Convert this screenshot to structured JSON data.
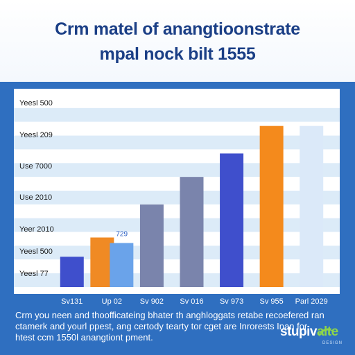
{
  "header": {
    "title_line1": "Crm matel of anangtioonstrate",
    "title_line2": "mpal nock bilt 1555"
  },
  "chart_data": {
    "type": "bar",
    "title": "Crm matel of anangtioonstrate mpal nock bilt 1555",
    "categories": [
      "Sv131",
      "Up 02",
      "Sv 902",
      "Sv 016",
      "Sv 973",
      "Sv 955",
      "Parl 2029"
    ],
    "y_tick_labels": [
      "Yeesl 77",
      "Yeesl 500",
      "Yeer 2010",
      "Use 2010",
      "Use 7000",
      "Yeesl 209",
      "Yeesl 500"
    ],
    "ylim": [
      0,
      7
    ],
    "bars": [
      {
        "category": "Sv131",
        "value": 1.1,
        "color": "#3f4fcc"
      },
      {
        "category": "Up 02",
        "value": 1.8,
        "color": "#f08a24"
      },
      {
        "category": "Up 02",
        "value": 1.6,
        "color": "#6aa3ea"
      },
      {
        "category": "Sv 902",
        "value": 3.0,
        "color": "#7a84ac"
      },
      {
        "category": "Sv 016",
        "value": 4.0,
        "color": "#7a84ac"
      },
      {
        "category": "Sv 973",
        "value": 4.85,
        "color": "#3f4fcc"
      },
      {
        "category": "Sv 955",
        "value": 5.85,
        "color": "#f48a1c"
      },
      {
        "category": "Parl 2029",
        "value": 5.85,
        "color": "#dbe9f9"
      }
    ],
    "annotations": [
      {
        "text": "729",
        "category": "Up 02"
      }
    ],
    "grid": true,
    "legend": "none"
  },
  "caption": {
    "line1": "Crm you neen and thoofficateing bhater th anghloggats retabe recoefered ran",
    "line2": "ctamerk and yourl ppest, ang certody tearty tor cget are Inrorests Inan for",
    "line3": "htest ccm 1550l anangtiont pment."
  },
  "brand": {
    "name_part1": "stupiv",
    "name_part2": "alte",
    "sub": "DESIGN"
  },
  "colors": {
    "background": "#2f6fc0",
    "title": "#1b3f86",
    "band": "#dcebf8",
    "brand_accent": "#8ed64a"
  }
}
